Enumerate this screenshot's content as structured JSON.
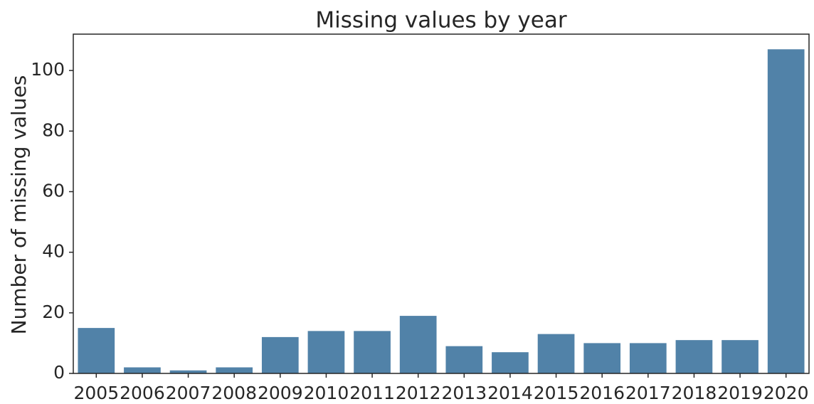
{
  "chart_data": {
    "type": "bar",
    "title": "Missing values by year",
    "xlabel": "",
    "ylabel": "Number of missing values",
    "categories": [
      "2005",
      "2006",
      "2007",
      "2008",
      "2009",
      "2010",
      "2011",
      "2012",
      "2013",
      "2014",
      "2015",
      "2016",
      "2017",
      "2018",
      "2019",
      "2020"
    ],
    "values": [
      15,
      2,
      1,
      2,
      12,
      14,
      14,
      19,
      9,
      7,
      13,
      10,
      10,
      11,
      11,
      107
    ],
    "ylim": [
      0,
      112
    ],
    "yticks": [
      "0",
      "20",
      "40",
      "60",
      "80",
      "100"
    ],
    "grid": false,
    "colors": {
      "bar": "#5182a8",
      "axis": "#262626"
    }
  }
}
